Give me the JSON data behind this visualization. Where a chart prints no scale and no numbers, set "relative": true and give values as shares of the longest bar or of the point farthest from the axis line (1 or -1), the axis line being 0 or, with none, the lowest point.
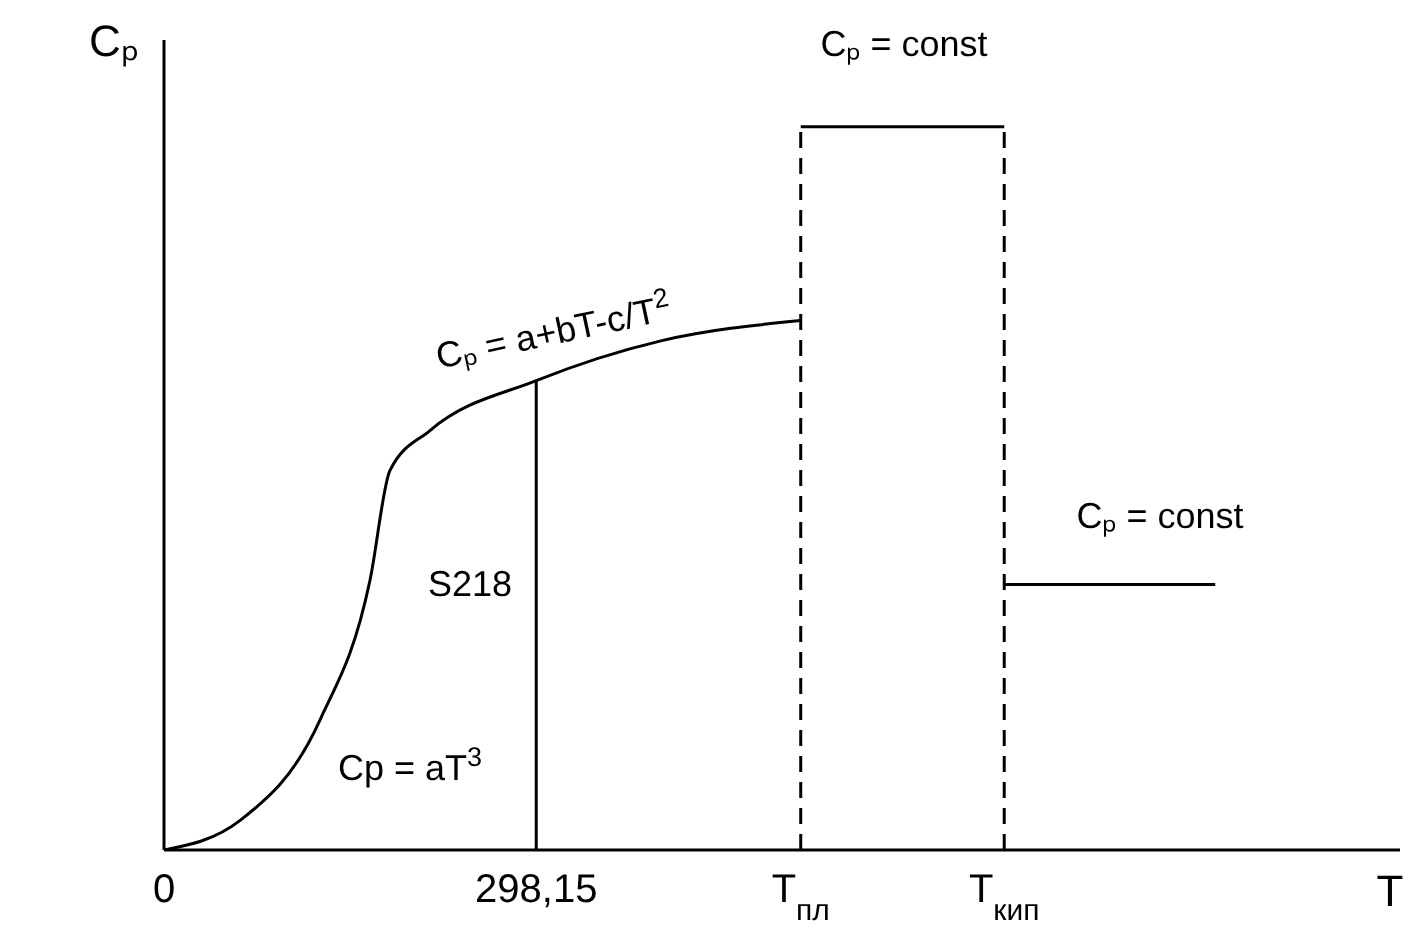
{
  "chart_data": {
    "type": "line",
    "relative": true,
    "ylabel": "Cₚ",
    "xlabel": "T",
    "xlim": [
      0,
      990
    ],
    "xticks": [
      {
        "value": 0,
        "label": "0"
      },
      {
        "value": 298.15,
        "label": "298,15"
      },
      {
        "value": 510,
        "label": "T$_{пл}$"
      },
      {
        "value": 673,
        "label": "T$_{кип}$"
      }
    ],
    "grid": false,
    "marker": "none",
    "series": [
      {
        "color": "#000000",
        "line_style": "solid",
        "x": [
          0,
          61,
          125,
          165,
          181,
          213,
          298.15,
          398,
          510
        ],
        "values": [
          0,
          0.041,
          0.18,
          0.373,
          0.525,
          0.58,
          0.649,
          0.704,
          0.732
        ]
      },
      {
        "color": "#000000",
        "line_style": "solid",
        "x": [
          510,
          673
        ],
        "values": [
          1,
          1
        ]
      },
      {
        "color": "#000000",
        "line_style": "solid",
        "x": [
          673,
          842
        ],
        "values": [
          0.367,
          0.367
        ]
      },
      {
        "color": "#000000",
        "line_style": "solid",
        "x": [
          298.15,
          298.15
        ],
        "values": [
          0,
          0.649
        ]
      },
      {
        "color": "#000000",
        "line_style": "dashed",
        "x": [
          510,
          510
        ],
        "values": [
          0,
          1
        ]
      },
      {
        "color": "#000000",
        "line_style": "dashed",
        "x": [
          673,
          673
        ],
        "values": [
          0,
          1
        ]
      }
    ],
    "annotations": [
      "Cₚ = a+bT-c/T$^{2}$",
      "Cₚ = const",
      "Cₚ = const",
      "Cp = aT$^{3}$",
      "S218"
    ]
  }
}
